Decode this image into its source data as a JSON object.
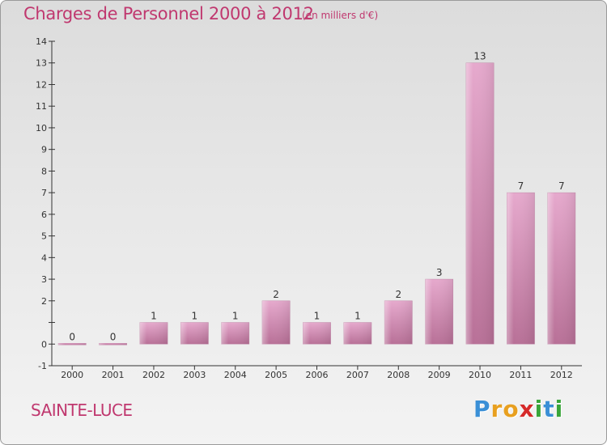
{
  "title": "Charges de Personnel 2000 à 2012",
  "unit_note": "(en milliers d'€)",
  "commune": "SAINTE-LUCE",
  "logo": {
    "text": "Proxiti",
    "letters": [
      "P",
      "r",
      "o",
      "x",
      "i",
      "t",
      "i"
    ]
  },
  "colors": {
    "accent": "#c0386f",
    "bar_light": "#e6a9cd",
    "bar_dark": "#b87097",
    "logo": [
      "#3a8fd6",
      "#e8a020",
      "#e8a020",
      "#d62a2a",
      "#3aa53a",
      "#3a8fd6",
      "#3aa53a"
    ]
  },
  "chart_data": {
    "type": "bar",
    "title": "Charges de Personnel 2000 à 2012",
    "categories": [
      "2000",
      "2001",
      "2002",
      "2003",
      "2004",
      "2005",
      "2006",
      "2007",
      "2008",
      "2009",
      "2010",
      "2011",
      "2012"
    ],
    "values": [
      0,
      0,
      1,
      1,
      1,
      2,
      1,
      1,
      2,
      3,
      13,
      7,
      7
    ],
    "data_labels": [
      "0",
      "0",
      "1",
      "1",
      "1",
      "2",
      "1",
      "1",
      "2",
      "3",
      "13",
      "7",
      "7"
    ],
    "ylim": [
      -1,
      14
    ],
    "y_ticks": [
      "-1",
      "0",
      "",
      "2",
      "3",
      "4",
      "5",
      "6",
      "7",
      "8",
      "9",
      "10",
      "11",
      "12",
      "13",
      "14"
    ],
    "y_tick_values": [
      -1,
      0,
      1,
      2,
      3,
      4,
      5,
      6,
      7,
      8,
      9,
      10,
      11,
      12,
      13,
      14
    ],
    "xlabel": "",
    "ylabel": "",
    "grid": false,
    "legend": "none"
  }
}
